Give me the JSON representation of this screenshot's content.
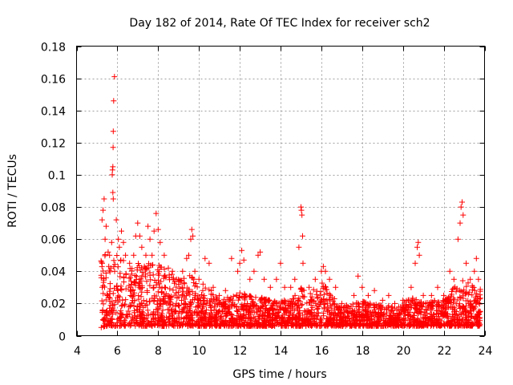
{
  "chart_data": {
    "type": "scatter",
    "title": "Day 182 of 2014, Rate Of TEC Index for receiver sch2",
    "xlabel": "GPS time / hours",
    "ylabel": "ROTI / TECUs",
    "xlim": [
      4,
      24
    ],
    "ylim": [
      0,
      0.18
    ],
    "xticks": [
      4,
      6,
      8,
      10,
      12,
      14,
      16,
      18,
      20,
      22,
      24
    ],
    "xtick_labels": [
      "4",
      "6",
      "8",
      "10",
      "12",
      "14",
      "16",
      "18",
      "20",
      "22",
      "24"
    ],
    "yticks": [
      0,
      0.02,
      0.04,
      0.06,
      0.08,
      0.1,
      0.12,
      0.14,
      0.16,
      0.18
    ],
    "ytick_labels": [
      "0",
      "0.02",
      "0.04",
      "0.06",
      "0.08",
      "0.1",
      "0.12",
      "0.14",
      "0.16",
      "0.18"
    ],
    "grid": true,
    "marker": "+",
    "color": "#ff0000",
    "series": [
      {
        "name": "ROTI",
        "points": [
          [
            5.25,
            0.072
          ],
          [
            5.3,
            0.078
          ],
          [
            5.35,
            0.085
          ],
          [
            5.4,
            0.06
          ],
          [
            5.45,
            0.068
          ],
          [
            5.55,
            0.052
          ],
          [
            5.62,
            0.05
          ],
          [
            5.68,
            0.042
          ],
          [
            5.72,
            0.058
          ],
          [
            5.75,
            0.1
          ],
          [
            5.76,
            0.103
          ],
          [
            5.78,
            0.105
          ],
          [
            5.79,
            0.117
          ],
          [
            5.8,
            0.127
          ],
          [
            5.82,
            0.146
          ],
          [
            5.86,
            0.161
          ],
          [
            5.78,
            0.089
          ],
          [
            5.8,
            0.085
          ],
          [
            5.95,
            0.072
          ],
          [
            6.05,
            0.06
          ],
          [
            6.1,
            0.055
          ],
          [
            6.2,
            0.065
          ],
          [
            6.3,
            0.058
          ],
          [
            6.4,
            0.05
          ],
          [
            6.6,
            0.045
          ],
          [
            6.8,
            0.05
          ],
          [
            6.9,
            0.062
          ],
          [
            7.0,
            0.07
          ],
          [
            7.1,
            0.062
          ],
          [
            7.2,
            0.055
          ],
          [
            7.4,
            0.05
          ],
          [
            7.5,
            0.068
          ],
          [
            7.6,
            0.06
          ],
          [
            7.7,
            0.05
          ],
          [
            7.8,
            0.065
          ],
          [
            7.9,
            0.076
          ],
          [
            8.0,
            0.066
          ],
          [
            8.1,
            0.058
          ],
          [
            8.3,
            0.05
          ],
          [
            8.5,
            0.042
          ],
          [
            8.7,
            0.04
          ],
          [
            8.9,
            0.035
          ],
          [
            9.2,
            0.04
          ],
          [
            9.4,
            0.048
          ],
          [
            9.5,
            0.05
          ],
          [
            9.6,
            0.06
          ],
          [
            9.65,
            0.066
          ],
          [
            9.7,
            0.062
          ],
          [
            9.8,
            0.04
          ],
          [
            10.0,
            0.035
          ],
          [
            10.2,
            0.032
          ],
          [
            10.3,
            0.048
          ],
          [
            10.5,
            0.045
          ],
          [
            10.7,
            0.03
          ],
          [
            11.0,
            0.025
          ],
          [
            11.3,
            0.028
          ],
          [
            11.6,
            0.048
          ],
          [
            11.9,
            0.04
          ],
          [
            12.0,
            0.045
          ],
          [
            12.1,
            0.053
          ],
          [
            12.2,
            0.047
          ],
          [
            12.5,
            0.035
          ],
          [
            12.7,
            0.04
          ],
          [
            12.9,
            0.05
          ],
          [
            13.0,
            0.052
          ],
          [
            13.2,
            0.035
          ],
          [
            13.5,
            0.03
          ],
          [
            13.8,
            0.035
          ],
          [
            14.0,
            0.045
          ],
          [
            14.2,
            0.03
          ],
          [
            14.5,
            0.03
          ],
          [
            14.7,
            0.035
          ],
          [
            14.9,
            0.055
          ],
          [
            15.0,
            0.08
          ],
          [
            15.02,
            0.078
          ],
          [
            15.05,
            0.075
          ],
          [
            15.08,
            0.062
          ],
          [
            15.1,
            0.045
          ],
          [
            15.4,
            0.03
          ],
          [
            15.7,
            0.035
          ],
          [
            16.0,
            0.04
          ],
          [
            16.1,
            0.043
          ],
          [
            16.2,
            0.04
          ],
          [
            16.4,
            0.035
          ],
          [
            16.7,
            0.03
          ],
          [
            17.0,
            0.02
          ],
          [
            17.3,
            0.018
          ],
          [
            17.6,
            0.025
          ],
          [
            17.8,
            0.037
          ],
          [
            18.0,
            0.03
          ],
          [
            18.3,
            0.025
          ],
          [
            18.6,
            0.028
          ],
          [
            19.0,
            0.022
          ],
          [
            19.3,
            0.025
          ],
          [
            19.6,
            0.02
          ],
          [
            20.0,
            0.022
          ],
          [
            20.4,
            0.03
          ],
          [
            20.6,
            0.045
          ],
          [
            20.7,
            0.055
          ],
          [
            20.75,
            0.058
          ],
          [
            20.8,
            0.05
          ],
          [
            21.0,
            0.025
          ],
          [
            21.4,
            0.025
          ],
          [
            21.7,
            0.03
          ],
          [
            22.0,
            0.025
          ],
          [
            22.3,
            0.04
          ],
          [
            22.5,
            0.035
          ],
          [
            22.7,
            0.06
          ],
          [
            22.8,
            0.07
          ],
          [
            22.85,
            0.08
          ],
          [
            22.9,
            0.083
          ],
          [
            22.95,
            0.075
          ],
          [
            23.1,
            0.045
          ],
          [
            23.3,
            0.035
          ],
          [
            23.5,
            0.04
          ],
          [
            23.6,
            0.048
          ],
          [
            23.7,
            0.035
          ]
        ]
      }
    ],
    "dense_band": {
      "x_range": [
        5.2,
        23.8
      ],
      "envelope": [
        [
          5.2,
          0.005,
          0.05
        ],
        [
          5.5,
          0.006,
          0.055
        ],
        [
          6.0,
          0.006,
          0.05
        ],
        [
          6.5,
          0.006,
          0.045
        ],
        [
          7.0,
          0.006,
          0.045
        ],
        [
          7.5,
          0.006,
          0.045
        ],
        [
          8.0,
          0.006,
          0.045
        ],
        [
          8.5,
          0.006,
          0.04
        ],
        [
          9.0,
          0.006,
          0.035
        ],
        [
          9.5,
          0.006,
          0.04
        ],
        [
          10.0,
          0.006,
          0.03
        ],
        [
          10.5,
          0.006,
          0.03
        ],
        [
          11.0,
          0.006,
          0.022
        ],
        [
          11.5,
          0.006,
          0.025
        ],
        [
          12.0,
          0.006,
          0.028
        ],
        [
          12.5,
          0.006,
          0.025
        ],
        [
          13.0,
          0.006,
          0.025
        ],
        [
          13.5,
          0.006,
          0.022
        ],
        [
          14.0,
          0.006,
          0.022
        ],
        [
          14.5,
          0.006,
          0.022
        ],
        [
          15.0,
          0.006,
          0.03
        ],
        [
          15.5,
          0.006,
          0.028
        ],
        [
          16.0,
          0.006,
          0.035
        ],
        [
          16.5,
          0.006,
          0.025
        ],
        [
          17.0,
          0.006,
          0.018
        ],
        [
          17.5,
          0.006,
          0.02
        ],
        [
          18.0,
          0.006,
          0.022
        ],
        [
          18.5,
          0.006,
          0.02
        ],
        [
          19.0,
          0.006,
          0.02
        ],
        [
          19.5,
          0.006,
          0.018
        ],
        [
          20.0,
          0.006,
          0.02
        ],
        [
          20.5,
          0.006,
          0.025
        ],
        [
          21.0,
          0.006,
          0.02
        ],
        [
          21.5,
          0.006,
          0.022
        ],
        [
          22.0,
          0.006,
          0.022
        ],
        [
          22.5,
          0.006,
          0.03
        ],
        [
          23.0,
          0.006,
          0.035
        ],
        [
          23.5,
          0.006,
          0.03
        ],
        [
          23.8,
          0.006,
          0.03
        ]
      ],
      "point_count": 2600
    }
  }
}
